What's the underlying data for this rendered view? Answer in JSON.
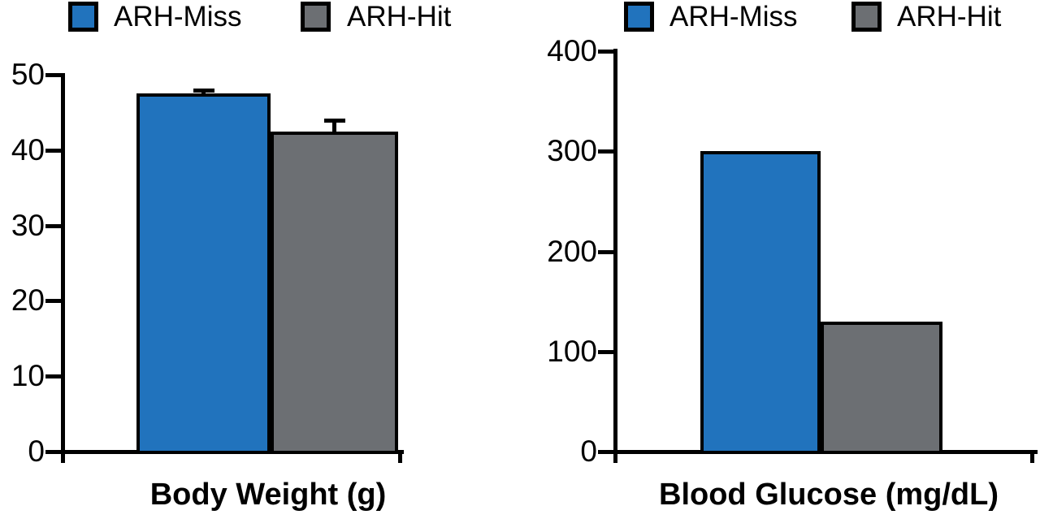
{
  "figure": {
    "background": "#ffffff",
    "axis_color": "#000000",
    "bar_border_color": "#000000"
  },
  "chart_data": [
    {
      "type": "bar",
      "title": "Body Weight (g)",
      "categories": [
        "ARH-Miss",
        "ARH-Hit"
      ],
      "values": [
        47.5,
        42.5
      ],
      "errors": [
        0.5,
        1.5
      ],
      "ylim": [
        0,
        50
      ],
      "yticks": [
        0,
        10,
        20,
        30,
        40,
        50
      ],
      "ytick_labels": [
        "0",
        "10",
        "20",
        "30",
        "40",
        "50"
      ],
      "legend": [
        "ARH-Miss",
        "ARH-Hit"
      ],
      "legend_position": "top",
      "grid": false,
      "bar_colors": [
        "#2173BD",
        "#6C6F73"
      ],
      "xlabel": "",
      "ylabel": ""
    },
    {
      "type": "bar",
      "title": "Blood Glucose (mg/dL)",
      "categories": [
        "ARH-Miss",
        "ARH-Hit"
      ],
      "values": [
        300,
        130
      ],
      "errors": null,
      "ylim": [
        0,
        400
      ],
      "yticks": [
        0,
        100,
        200,
        300,
        400
      ],
      "ytick_labels": [
        "0",
        "100",
        "200",
        "300",
        "400"
      ],
      "legend": [
        "ARH-Miss",
        "ARH-Hit"
      ],
      "legend_position": "top",
      "grid": false,
      "bar_colors": [
        "#2173BD",
        "#6C6F73"
      ],
      "xlabel": "",
      "ylabel": ""
    }
  ]
}
